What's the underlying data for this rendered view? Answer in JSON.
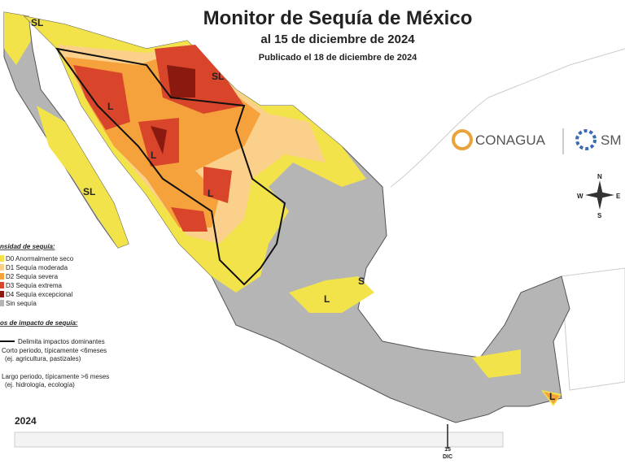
{
  "header": {
    "title": "Monitor de Sequía de México",
    "subtitle": "al 15 de diciembre de 2024",
    "published": "Publicado el 18 de diciembre de 2024"
  },
  "legend": {
    "intensity_title": "nsidad de sequía:",
    "items": [
      "D0 Anormalmente seco",
      "D1 Sequía moderada",
      "D2 Sequía severa",
      "D3 Sequía extrema",
      "D4 Sequía excepcional",
      "Sin sequía"
    ],
    "impact_title": "os de impacto de sequía:",
    "impact_items": [
      "Delimita impactos dominantes",
      "Corto periodo, típicamente <6meses",
      "(ej. agricultura, pastizales)",
      "Largo periodo, típicamente >6 meses",
      "(ej. hidrología, ecología)"
    ]
  },
  "map_labels": [
    "SL",
    "SL",
    "L",
    "SL",
    "L",
    "L",
    "S",
    "L",
    "L"
  ],
  "logos": {
    "conagua": "CONAGUA",
    "smn": "SM"
  },
  "compass": [
    "N",
    "E",
    "S",
    "W"
  ],
  "timeline": {
    "year": "2024",
    "day": "15",
    "month": "DIC"
  }
}
